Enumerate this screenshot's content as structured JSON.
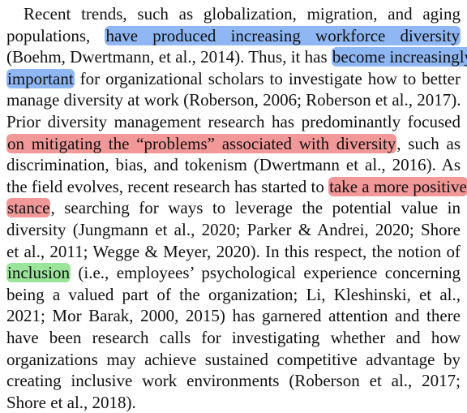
{
  "paragraph": {
    "lines": [
      [
        {
          "text": "Recent trends, such as globalization, migration, and aging"
        }
      ],
      [
        {
          "text": "populations, "
        },
        {
          "text": "have produced increasing workforce diversity",
          "hl": "blue"
        }
      ],
      [
        {
          "text": "(Boehm, Dwertmann, et al., 2014). Thus, it has "
        },
        {
          "text": "become increasingly",
          "hl": "blue"
        }
      ],
      [
        {
          "text": "important",
          "hl": "blue"
        },
        {
          "text": " for organizational scholars to investigate how to better"
        }
      ],
      [
        {
          "text": "manage diversity at work (Roberson, 2006; Roberson et al., 2017)."
        }
      ],
      [
        {
          "text": "Prior diversity management research has predominantly focused"
        }
      ],
      [
        {
          "text": "on mitigating the “problems” associated with diversity",
          "hl": "red"
        },
        {
          "text": ", such as"
        }
      ],
      [
        {
          "text": "discrimination, bias, and tokenism (Dwertmann et al., 2016). As"
        }
      ],
      [
        {
          "text": "the field evolves, recent research has started to "
        },
        {
          "text": "take a more positive",
          "hl": "red"
        }
      ],
      [
        {
          "text": "stance",
          "hl": "red"
        },
        {
          "text": ", searching for ways to leverage the potential value in"
        }
      ],
      [
        {
          "text": "diversity (Jungmann et al., 2020; Parker & Andrei, 2020; Shore"
        }
      ],
      [
        {
          "text": "et al., 2011; Wegge & Meyer, 2020). In this respect, the notion of"
        }
      ],
      [
        {
          "text": "inclusion",
          "hl": "green"
        },
        {
          "text": " (i.e., employees’ psychological experience concerning"
        }
      ],
      [
        {
          "text": "being a valued part of the organization; Li, Kleshinski, et al.,"
        }
      ],
      [
        {
          "text": "2021; Mor Barak, 2000, 2015) has garnered attention and there"
        }
      ],
      [
        {
          "text": "have been research calls for investigating whether and how"
        }
      ],
      [
        {
          "text": "organizations may achieve sustained competitive advantage by"
        }
      ],
      [
        {
          "text": "creating inclusive work environments (Roberson et al., 2017;"
        }
      ],
      [
        {
          "text": "Shore et al., 2018)."
        }
      ]
    ]
  },
  "colors": {
    "blue": "#8fb7f4",
    "red": "#f29898",
    "green": "#9be59b"
  }
}
